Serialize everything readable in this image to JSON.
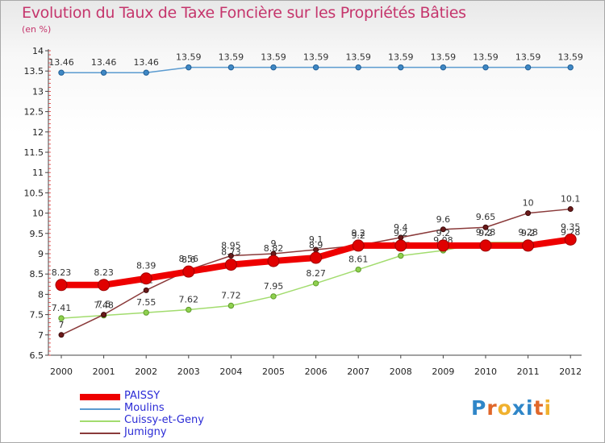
{
  "title": "Evolution du Taux de Taxe Foncière sur les Propriétés Bâties",
  "unit": "(en %)",
  "logo": {
    "text": "Proxiti",
    "letters": [
      "P",
      "r",
      "o",
      "x",
      "i",
      "t",
      "i"
    ],
    "colors": [
      "#2f86c8",
      "#e0672a",
      "#f0b12e",
      "#2f86c8",
      "#2f86c8",
      "#e0672a",
      "#f0b12e"
    ]
  },
  "chart_data": {
    "type": "line",
    "title": "Evolution du Taux de Taxe Foncière sur les Propriétés Bâties",
    "ylabel": "(en %)",
    "x": [
      "2000",
      "2001",
      "2002",
      "2003",
      "2004",
      "2005",
      "2006",
      "2007",
      "2008",
      "2009",
      "2010",
      "2011",
      "2012"
    ],
    "ylim": [
      6.5,
      14
    ],
    "yticks": [
      "6.5",
      "7",
      "7.5",
      "8",
      "8.5",
      "9",
      "9.5",
      "10",
      "10.5",
      "11",
      "11.5",
      "12",
      "12.5",
      "13",
      "13.5",
      "14"
    ],
    "grid": false,
    "legend_position": "bottom-left",
    "series": [
      {
        "name": "Moulins",
        "color": "#5b9bd0",
        "values": [
          13.46,
          13.46,
          13.46,
          13.59,
          13.59,
          13.59,
          13.59,
          13.59,
          13.59,
          13.59,
          13.59,
          13.59,
          13.59
        ],
        "labels": [
          "13.46",
          "13.46",
          "13.46",
          "13.59",
          "13.59",
          "13.59",
          "13.59",
          "13.59",
          "13.59",
          "13.59",
          "13.59",
          "13.59",
          "13.59"
        ]
      },
      {
        "name": "Cuissy-et-Geny",
        "color": "#a2dc6e",
        "values": [
          7.41,
          7.48,
          7.55,
          7.62,
          7.72,
          7.95,
          8.27,
          8.61,
          8.95,
          9.08,
          9.28,
          9.28,
          9.28
        ],
        "labels": [
          "7.41",
          "7.48",
          "7.55",
          "7.62",
          "7.72",
          "7.95",
          "8.27",
          "8.61",
          "8.95",
          "9.08",
          "9.28",
          "9.28",
          "9.28"
        ]
      },
      {
        "name": "Jumigny",
        "color": "#8a3a3a",
        "values": [
          7.0,
          7.5,
          8.1,
          8.6,
          8.95,
          9.0,
          9.1,
          9.2,
          9.4,
          9.6,
          9.65,
          10.0,
          10.1
        ],
        "labels": [
          "7",
          "7.5",
          "8.1",
          "8.6",
          "8.95",
          "9",
          "9.1",
          "9.2",
          "9.4",
          "9.6",
          "9.65",
          "10",
          "10.1"
        ]
      },
      {
        "name": "PAISSY",
        "color": "#ee0000",
        "values": [
          8.23,
          8.23,
          8.39,
          8.56,
          8.73,
          8.82,
          8.9,
          9.2,
          9.2,
          9.2,
          9.2,
          9.2,
          9.35
        ],
        "labels": [
          "8.23",
          "8.23",
          "8.39",
          "8.56",
          "8.73",
          "8.82",
          "8.9",
          "9.2",
          "9.2",
          "9.2",
          "9.2",
          "9.2",
          "9.35"
        ]
      }
    ]
  }
}
